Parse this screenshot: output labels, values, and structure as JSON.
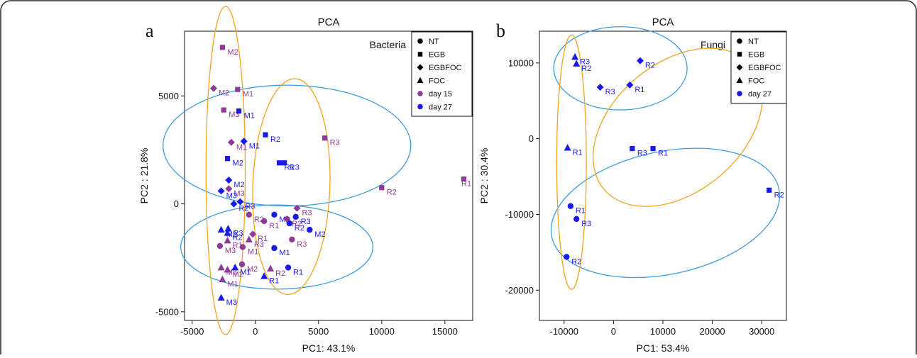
{
  "colors": {
    "day15": "#8e3a96",
    "day27": "#1a1ae6",
    "ellipse_blue": "#3d9be0",
    "ellipse_orange": "#f0a41e"
  },
  "chart_data": [
    {
      "type": "scatter",
      "panel": "a",
      "title": "PCA",
      "corner_label": "Bacteria",
      "xlabel": "PC1: 43.1%",
      "ylabel": "PC2 : 21.8%",
      "xlim": [
        -5600,
        17200
      ],
      "ylim": [
        -5400,
        8000
      ],
      "xticks": [
        -5000,
        0,
        5000,
        10000,
        15000
      ],
      "yticks": [
        -5000,
        0,
        5000
      ],
      "grid": false,
      "legend_position": "top-right",
      "legend": [
        {
          "label": "NT",
          "shape": "circle",
          "color": "#000000"
        },
        {
          "label": "EGB",
          "shape": "square",
          "color": "#000000"
        },
        {
          "label": "EGBFOC",
          "shape": "diamond",
          "color": "#000000"
        },
        {
          "label": "FOC",
          "shape": "triangle",
          "color": "#000000"
        },
        {
          "label": "day 15",
          "shape": "circle",
          "color": "#8e3a96"
        },
        {
          "label": "day 27",
          "shape": "circle",
          "color": "#1a1ae6"
        }
      ],
      "ellipses": [
        {
          "color": "#3d9be0",
          "cx": 2500,
          "cy": 2700,
          "rx": 9800,
          "ry": 2800,
          "angle": 0
        },
        {
          "color": "#3d9be0",
          "cx": 1700,
          "cy": -2000,
          "rx": 7600,
          "ry": 1950,
          "angle": 0
        },
        {
          "color": "#f0a41e",
          "cx": -2350,
          "cy": 1550,
          "rx": 1550,
          "ry": 7600,
          "angle": 0
        },
        {
          "color": "#f0a41e",
          "cx": 2850,
          "cy": 800,
          "rx": 3050,
          "ry": 5000,
          "angle": 2
        }
      ],
      "series": [
        {
          "group": "NT",
          "day": "day 15",
          "shape": "circle",
          "points": [
            {
              "x": -2800,
              "y": -1950,
              "label": "M3"
            },
            {
              "x": -1000,
              "y": -2000,
              "label": "M1"
            },
            {
              "x": -1050,
              "y": -2800,
              "label": "M2"
            },
            {
              "x": -500,
              "y": -500,
              "label": "R2"
            },
            {
              "x": 700,
              "y": -800,
              "label": "R1"
            },
            {
              "x": 2900,
              "y": -1650,
              "label": "R3"
            }
          ]
        },
        {
          "group": "NT",
          "day": "day 27",
          "shape": "circle",
          "points": [
            {
              "x": 1500,
              "y": -500,
              "label": "M3"
            },
            {
              "x": 1500,
              "y": -2050,
              "label": "M1"
            },
            {
              "x": 2700,
              "y": -900,
              "label": "R2"
            },
            {
              "x": 3200,
              "y": -600,
              "label": "R3"
            },
            {
              "x": 4300,
              "y": -1200,
              "label": "M2"
            },
            {
              "x": 2600,
              "y": -2950,
              "label": "R1"
            }
          ]
        },
        {
          "group": "EGB",
          "day": "day 15",
          "shape": "square",
          "points": [
            {
              "x": -2600,
              "y": 7250,
              "label": "M2"
            },
            {
              "x": -1400,
              "y": 5300,
              "label": "M1"
            },
            {
              "x": -2500,
              "y": 4350,
              "label": "M3"
            },
            {
              "x": 5500,
              "y": 3050,
              "label": "R3"
            },
            {
              "x": 10000,
              "y": 750,
              "label": "R2"
            },
            {
              "x": 16500,
              "y": 1150,
              "label": "R1"
            }
          ]
        },
        {
          "group": "EGB",
          "day": "day 27",
          "shape": "square",
          "points": [
            {
              "x": -1300,
              "y": 4300,
              "label": "M1"
            },
            {
              "x": 800,
              "y": 3200,
              "label": "R2"
            },
            {
              "x": -2200,
              "y": 2100,
              "label": "M2"
            },
            {
              "x": 1900,
              "y": 1900,
              "label": "R1"
            },
            {
              "x": 2300,
              "y": 1900,
              "label": "R3"
            }
          ]
        },
        {
          "group": "EGBFOC",
          "day": "day 15",
          "shape": "diamond",
          "points": [
            {
              "x": -3300,
              "y": 5350,
              "label": "M2"
            },
            {
              "x": -1900,
              "y": 2850,
              "label": "M1"
            },
            {
              "x": -2100,
              "y": 700,
              "label": "M3"
            },
            {
              "x": 3300,
              "y": -200,
              "label": "R3"
            },
            {
              "x": 2500,
              "y": -700,
              "label": "R2"
            },
            {
              "x": -200,
              "y": -1400,
              "label": "R1"
            }
          ]
        },
        {
          "group": "EGBFOC",
          "day": "day 27",
          "shape": "diamond",
          "points": [
            {
              "x": -900,
              "y": 2900,
              "label": "M1"
            },
            {
              "x": -2100,
              "y": 1100,
              "label": "M2"
            },
            {
              "x": -2700,
              "y": 600,
              "label": "M3"
            },
            {
              "x": -1200,
              "y": 100,
              "label": "R3"
            },
            {
              "x": -1700,
              "y": 0,
              "label": "R2"
            }
          ]
        },
        {
          "group": "FOC",
          "day": "day 15",
          "shape": "triangle",
          "points": [
            {
              "x": -2200,
              "y": -1700,
              "label": "R1"
            },
            {
              "x": -500,
              "y": -1650,
              "label": "R3"
            },
            {
              "x": -2700,
              "y": -2950,
              "label": "M3"
            },
            {
              "x": -2200,
              "y": -3050,
              "label": "M2"
            },
            {
              "x": 1200,
              "y": -3000,
              "label": "R2"
            },
            {
              "x": -2600,
              "y": -3500,
              "label": "M1"
            }
          ]
        },
        {
          "group": "FOC",
          "day": "day 27",
          "shape": "triangle",
          "points": [
            {
              "x": -2150,
              "y": -1150,
              "label": "R3"
            },
            {
              "x": -2700,
              "y": -1200,
              "label": "M2"
            },
            {
              "x": -2200,
              "y": -1350,
              "label": "R2"
            },
            {
              "x": -1600,
              "y": -2950,
              "label": "M1"
            },
            {
              "x": 700,
              "y": -3350,
              "label": "R1"
            },
            {
              "x": -2700,
              "y": -4350,
              "label": "M3"
            }
          ]
        }
      ]
    },
    {
      "type": "scatter",
      "panel": "b",
      "title": "PCA",
      "corner_label": "Fungi",
      "xlabel": "PC1: 53.4%",
      "ylabel": "PC2 : 30.4%",
      "xlim": [
        -15000,
        35000
      ],
      "ylim": [
        -24000,
        14200
      ],
      "xticks": [
        -10000,
        0,
        10000,
        20000,
        30000
      ],
      "yticks": [
        -20000,
        -10000,
        0,
        10000
      ],
      "grid": false,
      "legend_position": "top-right",
      "legend": [
        {
          "label": "NT",
          "shape": "circle",
          "color": "#000000"
        },
        {
          "label": "EGB",
          "shape": "square",
          "color": "#000000"
        },
        {
          "label": "EGBFOC",
          "shape": "diamond",
          "color": "#000000"
        },
        {
          "label": "FOC",
          "shape": "triangle",
          "color": "#000000"
        },
        {
          "label": "day 27",
          "shape": "circle",
          "color": "#1a1ae6"
        }
      ],
      "ellipses": [
        {
          "color": "#3d9be0",
          "cx": 1400,
          "cy": 9300,
          "rx": 13500,
          "ry": 5500,
          "angle": 0
        },
        {
          "color": "#3d9be0",
          "cx": 10500,
          "cy": -9800,
          "rx": 23500,
          "ry": 8100,
          "angle": -12
        },
        {
          "color": "#f0a41e",
          "cx": -8500,
          "cy": -3100,
          "rx": 3000,
          "ry": 16800,
          "angle": 0
        },
        {
          "color": "#f0a41e",
          "cx": 13000,
          "cy": 1500,
          "rx": 19500,
          "ry": 8500,
          "angle": -40
        }
      ],
      "series": [
        {
          "group": "NT",
          "day": "day 27",
          "shape": "circle",
          "points": [
            {
              "x": -8700,
              "y": -8900,
              "label": "R1"
            },
            {
              "x": -7500,
              "y": -10600,
              "label": "R3"
            },
            {
              "x": -9500,
              "y": -15600,
              "label": "R2"
            }
          ]
        },
        {
          "group": "EGB",
          "day": "day 27",
          "shape": "square",
          "points": [
            {
              "x": 3800,
              "y": -1300,
              "label": "R3"
            },
            {
              "x": 8000,
              "y": -1300,
              "label": "R1"
            },
            {
              "x": 31500,
              "y": -6800,
              "label": "R2"
            }
          ]
        },
        {
          "group": "EGBFOC",
          "day": "day 27",
          "shape": "diamond",
          "points": [
            {
              "x": 5400,
              "y": 10300,
              "label": "R2"
            },
            {
              "x": -2700,
              "y": 6800,
              "label": "R3"
            },
            {
              "x": 3300,
              "y": 7100,
              "label": "R1"
            }
          ]
        },
        {
          "group": "FOC",
          "day": "day 27",
          "shape": "triangle",
          "points": [
            {
              "x": -7800,
              "y": 10800,
              "label": "R3"
            },
            {
              "x": -7500,
              "y": 9900,
              "label": "R2"
            },
            {
              "x": -9300,
              "y": -1200,
              "label": "R1"
            }
          ]
        }
      ]
    }
  ]
}
